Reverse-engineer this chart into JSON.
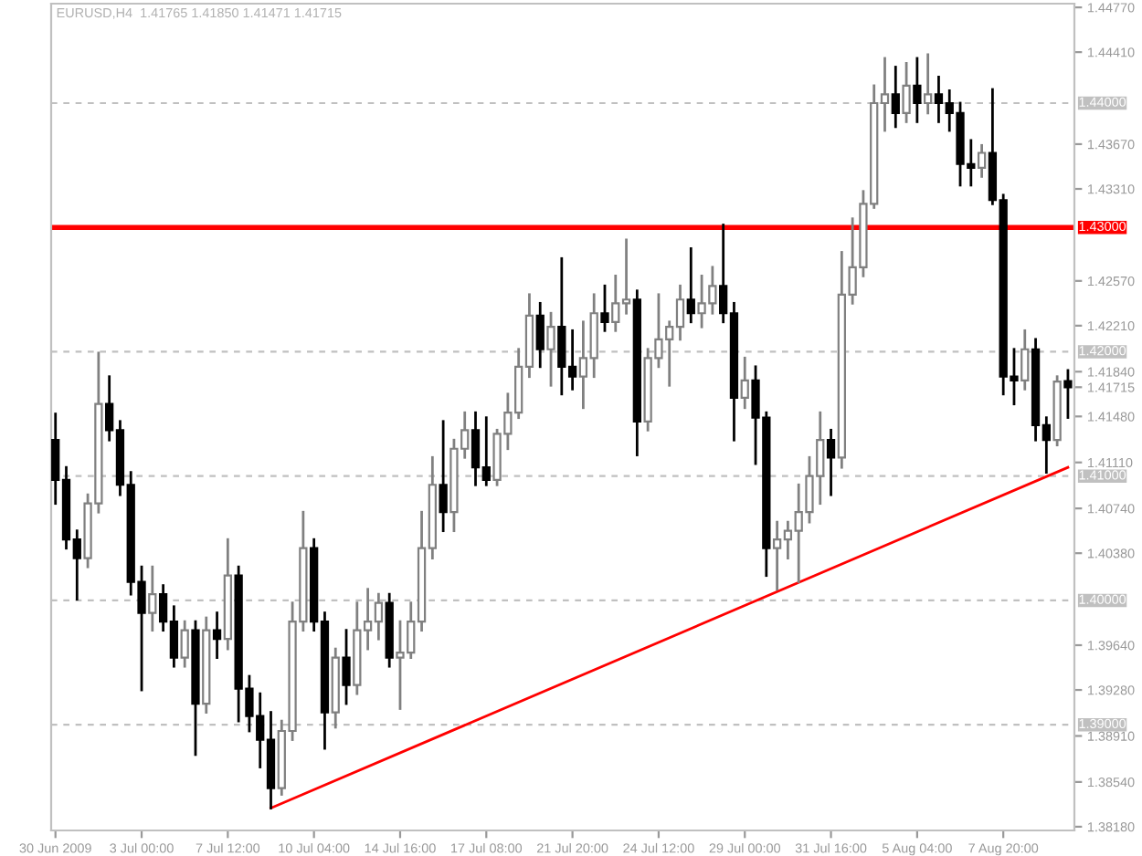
{
  "chart_data": {
    "type": "candlestick",
    "title": "EURUSD,H4  1.41765 1.41850 1.41471 1.41715",
    "categories": [
      "30 Jun 2009",
      null,
      null,
      null,
      null,
      null,
      null,
      null,
      "3 Jul 00:00",
      null,
      null,
      null,
      null,
      null,
      null,
      null,
      "7 Jul 12:00",
      null,
      null,
      null,
      null,
      null,
      null,
      null,
      "10 Jul 04:00",
      null,
      null,
      null,
      null,
      null,
      null,
      null,
      "14 Jul 16:00",
      null,
      null,
      null,
      null,
      null,
      null,
      null,
      "17 Jul 08:00",
      null,
      null,
      null,
      null,
      null,
      null,
      null,
      "21 Jul 20:00",
      null,
      null,
      null,
      null,
      null,
      null,
      null,
      "24 Jul 12:00",
      null,
      null,
      null,
      null,
      null,
      null,
      null,
      "29 Jul 00:00",
      null,
      null,
      null,
      null,
      null,
      null,
      null,
      "31 Jul 16:00",
      null,
      null,
      null,
      null,
      null,
      null,
      null,
      "5 Aug 04:00",
      null,
      null,
      null,
      null,
      null,
      null,
      null,
      "7 Aug 20:00",
      null,
      null,
      null,
      null,
      null,
      null
    ],
    "ohlc": [
      [
        1.4129,
        1.415,
        1.4078,
        1.4097
      ],
      [
        1.4097,
        1.4107,
        1.4042,
        1.4049
      ],
      [
        1.4049,
        1.4056,
        1.4001,
        1.4034
      ],
      [
        1.4034,
        1.4085,
        1.4027,
        1.4078
      ],
      [
        1.4078,
        1.4199,
        1.4071,
        1.4158
      ],
      [
        1.4158,
        1.418,
        1.4129,
        1.4137
      ],
      [
        1.4137,
        1.4144,
        1.4085,
        1.4093
      ],
      [
        1.4093,
        1.4103,
        1.4005,
        1.4015
      ],
      [
        1.4015,
        1.4027,
        1.3928,
        1.399
      ],
      [
        1.399,
        1.4027,
        1.3976,
        1.4005
      ],
      [
        1.4005,
        1.4012,
        1.3976,
        1.3983
      ],
      [
        1.3983,
        1.3995,
        1.3947,
        1.3954
      ],
      [
        1.3954,
        1.3983,
        1.3947,
        1.3976
      ],
      [
        1.3976,
        1.3983,
        1.3876,
        1.3917
      ],
      [
        1.3917,
        1.3986,
        1.391,
        1.3976
      ],
      [
        1.3976,
        1.399,
        1.3954,
        1.3969
      ],
      [
        1.3969,
        1.4049,
        1.3961,
        1.402
      ],
      [
        1.402,
        1.4027,
        1.3903,
        1.3929
      ],
      [
        1.3929,
        1.3939,
        1.3895,
        1.3907
      ],
      [
        1.3907,
        1.3925,
        1.3866,
        1.3888
      ],
      [
        1.3888,
        1.391,
        1.3833,
        1.3849
      ],
      [
        1.3849,
        1.3903,
        1.3844,
        1.3895
      ],
      [
        1.3895,
        1.3998,
        1.3888,
        1.3983
      ],
      [
        1.3983,
        1.4071,
        1.3976,
        1.4042
      ],
      [
        1.4042,
        1.4049,
        1.3976,
        1.3983
      ],
      [
        1.3983,
        1.399,
        1.3881,
        1.391
      ],
      [
        1.391,
        1.3961,
        1.3898,
        1.3954
      ],
      [
        1.3954,
        1.3976,
        1.3917,
        1.3932
      ],
      [
        1.3932,
        1.3998,
        1.3925,
        1.3976
      ],
      [
        1.3976,
        1.4009,
        1.3961,
        1.3983
      ],
      [
        1.3983,
        1.4005,
        1.3969,
        1.3998
      ],
      [
        1.3998,
        1.4005,
        1.3947,
        1.3954
      ],
      [
        1.3954,
        1.3983,
        1.3913,
        1.3958
      ],
      [
        1.3958,
        1.3998,
        1.3954,
        1.3983
      ],
      [
        1.3983,
        1.4071,
        1.3976,
        1.4042
      ],
      [
        1.4042,
        1.4115,
        1.4034,
        1.4093
      ],
      [
        1.4093,
        1.4144,
        1.4056,
        1.4071
      ],
      [
        1.4071,
        1.4129,
        1.4056,
        1.4122
      ],
      [
        1.4122,
        1.4151,
        1.4115,
        1.4137
      ],
      [
        1.4137,
        1.4151,
        1.4093,
        1.4107
      ],
      [
        1.4107,
        1.4147,
        1.4093,
        1.4097
      ],
      [
        1.4097,
        1.4137,
        1.4093,
        1.4134
      ],
      [
        1.4134,
        1.4166,
        1.4122,
        1.4151
      ],
      [
        1.4151,
        1.4202,
        1.4147,
        1.4188
      ],
      [
        1.4188,
        1.4246,
        1.418,
        1.4229
      ],
      [
        1.4229,
        1.4239,
        1.4188,
        1.4202
      ],
      [
        1.4202,
        1.4231,
        1.4173,
        1.422
      ],
      [
        1.422,
        1.4275,
        1.4166,
        1.4188
      ],
      [
        1.4188,
        1.4217,
        1.417,
        1.418
      ],
      [
        1.418,
        1.4224,
        1.4155,
        1.4195
      ],
      [
        1.4195,
        1.4246,
        1.418,
        1.4231
      ],
      [
        1.4231,
        1.4253,
        1.4217,
        1.4224
      ],
      [
        1.4224,
        1.4261,
        1.4217,
        1.4239
      ],
      [
        1.4239,
        1.429,
        1.4231,
        1.4242
      ],
      [
        1.4242,
        1.4249,
        1.4117,
        1.4144
      ],
      [
        1.4144,
        1.4202,
        1.4137,
        1.4195
      ],
      [
        1.4195,
        1.4246,
        1.4188,
        1.421
      ],
      [
        1.421,
        1.4224,
        1.4173,
        1.422
      ],
      [
        1.422,
        1.4253,
        1.421,
        1.4242
      ],
      [
        1.4242,
        1.4283,
        1.4224,
        1.4231
      ],
      [
        1.4231,
        1.4261,
        1.422,
        1.4239
      ],
      [
        1.4239,
        1.4268,
        1.4231,
        1.4253
      ],
      [
        1.4253,
        1.4302,
        1.4224,
        1.4231
      ],
      [
        1.4231,
        1.4239,
        1.4129,
        1.4163
      ],
      [
        1.4163,
        1.4195,
        1.4155,
        1.4177
      ],
      [
        1.4177,
        1.4188,
        1.411,
        1.4147
      ],
      [
        1.4147,
        1.4151,
        1.402,
        1.4042
      ],
      [
        1.4042,
        1.4063,
        1.4009,
        1.4049
      ],
      [
        1.4049,
        1.4063,
        1.4034,
        1.4056
      ],
      [
        1.4056,
        1.4093,
        1.4015,
        1.4071
      ],
      [
        1.4071,
        1.4115,
        1.4063,
        1.41
      ],
      [
        1.41,
        1.4151,
        1.4078,
        1.4129
      ],
      [
        1.4129,
        1.4137,
        1.4085,
        1.4115
      ],
      [
        1.4115,
        1.428,
        1.4107,
        1.4246
      ],
      [
        1.4246,
        1.4307,
        1.4239,
        1.4268
      ],
      [
        1.4268,
        1.4329,
        1.4261,
        1.4319
      ],
      [
        1.4319,
        1.4414,
        1.4316,
        1.44
      ],
      [
        1.44,
        1.4436,
        1.4378,
        1.4407
      ],
      [
        1.4407,
        1.4429,
        1.4381,
        1.4392
      ],
      [
        1.4392,
        1.4432,
        1.4385,
        1.4414
      ],
      [
        1.4414,
        1.4436,
        1.4385,
        1.44
      ],
      [
        1.44,
        1.4439,
        1.4392,
        1.4407
      ],
      [
        1.4407,
        1.4421,
        1.4385,
        1.44
      ],
      [
        1.44,
        1.441,
        1.4378,
        1.4392
      ],
      [
        1.4392,
        1.44,
        1.4334,
        1.4351
      ],
      [
        1.4351,
        1.437,
        1.4334,
        1.4348
      ],
      [
        1.4348,
        1.4366,
        1.4341,
        1.436
      ],
      [
        1.436,
        1.4411,
        1.4319,
        1.4322
      ],
      [
        1.4322,
        1.4326,
        1.4166,
        1.418
      ],
      [
        1.418,
        1.4202,
        1.4158,
        1.4177
      ],
      [
        1.4177,
        1.4217,
        1.417,
        1.4202
      ],
      [
        1.4202,
        1.421,
        1.4129,
        1.4141
      ],
      [
        1.4141,
        1.4147,
        1.4103,
        1.4129
      ],
      [
        1.4129,
        1.418,
        1.4125,
        1.4176
      ],
      [
        1.41765,
        1.4185,
        1.41471,
        1.41715
      ]
    ],
    "series": [
      {
        "type": "line",
        "color": "#ff0000",
        "values": [
          null,
          null,
          null,
          null,
          null,
          null,
          null,
          null,
          null,
          null,
          null,
          null,
          null,
          null,
          null,
          null,
          null,
          null,
          null,
          null,
          1.3833,
          null,
          null,
          null,
          null,
          null,
          null,
          null,
          null,
          null,
          null,
          null,
          null,
          null,
          null,
          null,
          null,
          null,
          null,
          null,
          null,
          null,
          null,
          null,
          null,
          null,
          null,
          null,
          null,
          null,
          null,
          null,
          null,
          null,
          null,
          null,
          null,
          null,
          null,
          null,
          null,
          null,
          null,
          null,
          null,
          null,
          null,
          null,
          null,
          null,
          null,
          null,
          null,
          null,
          null,
          null,
          null,
          null,
          null,
          null,
          null,
          null,
          null,
          null,
          null,
          null,
          null,
          null,
          null,
          null,
          null,
          null,
          null,
          null,
          1.4107
        ]
      }
    ],
    "ylim": [
      1.3815,
      1.448
    ],
    "yticks": [
      {
        "value": 1.4477,
        "label": "1.44770"
      },
      {
        "value": 1.4441,
        "label": "1.44410"
      },
      {
        "value": 1.4367,
        "label": "1.43670"
      },
      {
        "value": 1.4331,
        "label": "1.43310"
      },
      {
        "value": 1.4257,
        "label": "1.42570"
      },
      {
        "value": 1.4221,
        "label": "1.42210"
      },
      {
        "value": 1.4184,
        "label": "1.41840"
      },
      {
        "value": 1.41715,
        "label": "1.41715"
      },
      {
        "value": 1.4148,
        "label": "1.41480"
      },
      {
        "value": 1.4111,
        "label": "1.41110"
      },
      {
        "value": 1.4074,
        "label": "1.40740"
      },
      {
        "value": 1.4038,
        "label": "1.40380"
      },
      {
        "value": 1.3964,
        "label": "1.39640"
      },
      {
        "value": 1.3928,
        "label": "1.39280"
      },
      {
        "value": 1.3891,
        "label": "1.38910"
      },
      {
        "value": 1.3854,
        "label": "1.38540"
      },
      {
        "value": 1.3818,
        "label": "1.38180"
      }
    ],
    "ref_lines": [
      {
        "axis": "y",
        "value": 1.44,
        "label": "1.44000",
        "color": "#c0c0c0",
        "line_style": "dashed"
      },
      {
        "axis": "y",
        "value": 1.43,
        "label": "1.43000",
        "color": "#ff0000",
        "line_style": "solid"
      },
      {
        "axis": "y",
        "value": 1.42,
        "label": "1.42000",
        "color": "#c0c0c0",
        "line_style": "dashed"
      },
      {
        "axis": "y",
        "value": 1.41,
        "label": "1.41000",
        "color": "#c0c0c0",
        "line_style": "dashed"
      },
      {
        "axis": "y",
        "value": 1.4,
        "label": "1.40000",
        "color": "#c0c0c0",
        "line_style": "dashed"
      },
      {
        "axis": "y",
        "value": 1.39,
        "label": "1.39000",
        "color": "#c0c0c0",
        "line_style": "dashed"
      }
    ]
  }
}
